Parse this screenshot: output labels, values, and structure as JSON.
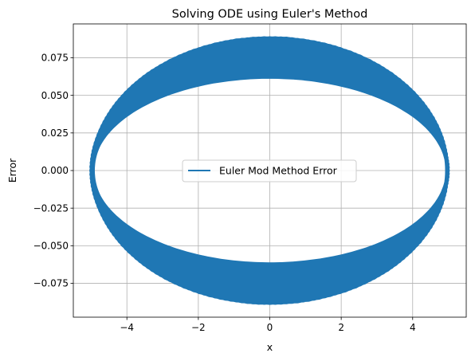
{
  "chart_data": {
    "type": "line",
    "title": "Solving ODE using Euler's Method",
    "xlabel": "x",
    "ylabel": "Error",
    "xlim": [
      -5.5,
      5.5
    ],
    "ylim": [
      -0.0975,
      0.0975
    ],
    "xticks": [
      -4,
      -2,
      0,
      2,
      4
    ],
    "xtick_labels": [
      "−4",
      "−2",
      "0",
      "2",
      "4"
    ],
    "yticks": [
      -0.075,
      -0.05,
      -0.025,
      0.0,
      0.025,
      0.05,
      0.075
    ],
    "ytick_labels": [
      "−0.075",
      "−0.050",
      "−0.025",
      "0.000",
      "0.025",
      "0.050",
      "0.075"
    ],
    "grid": true,
    "legend_position": "center",
    "series": [
      {
        "name": "Euler Mod Method Error",
        "color": "#1f77b4",
        "shape": "spiralling ellipse band",
        "x_amplitude": 5.0,
        "y_amplitude_start": 0.062,
        "y_amplitude_end": 0.089
      }
    ]
  }
}
